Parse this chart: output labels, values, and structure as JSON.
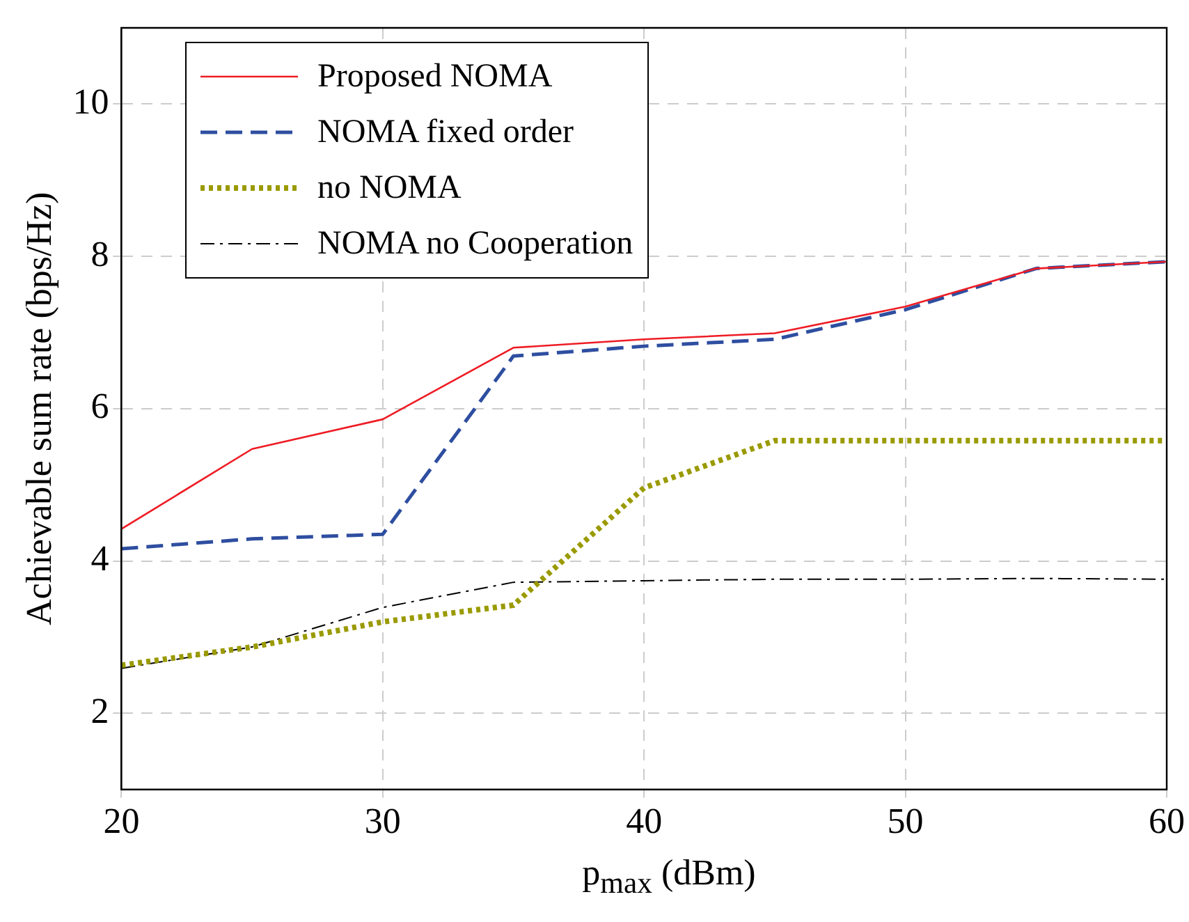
{
  "chart_data": {
    "type": "line",
    "xlabel": "p$_{max}$ (dBm)",
    "ylabel": "Achievable sum rate (bps/Hz)",
    "x": [
      20,
      25,
      30,
      35,
      40,
      45,
      50,
      55,
      60
    ],
    "xlim": [
      20,
      60
    ],
    "xticks": [
      20,
      30,
      40,
      50,
      60
    ],
    "ylim": [
      1,
      11
    ],
    "yticks": [
      2,
      4,
      6,
      8,
      10
    ],
    "grid": true,
    "legend": "top left",
    "marker": "none",
    "series": [
      {
        "name": "Proposed NOMA",
        "color": "#ee1c24",
        "line_style": "solid",
        "values": [
          4.42,
          5.47,
          5.86,
          6.8,
          6.91,
          6.99,
          7.34,
          7.84,
          7.93
        ]
      },
      {
        "name": "NOMA fixed order",
        "color": "#2e4ea0",
        "line_style": "dashed",
        "values": [
          4.16,
          4.29,
          4.35,
          6.69,
          6.82,
          6.91,
          7.3,
          7.84,
          7.93
        ]
      },
      {
        "name": "no NOMA",
        "color": "#9a9a00",
        "line_style": "dotted",
        "values": [
          2.63,
          2.87,
          3.2,
          3.42,
          4.96,
          5.58,
          5.58,
          5.58,
          5.58
        ]
      },
      {
        "name": "NOMA no Cooperation",
        "color": "#000000",
        "line_style": "dashdot",
        "values": [
          2.59,
          2.87,
          3.39,
          3.72,
          3.74,
          3.76,
          3.76,
          3.77,
          3.76
        ]
      }
    ]
  }
}
